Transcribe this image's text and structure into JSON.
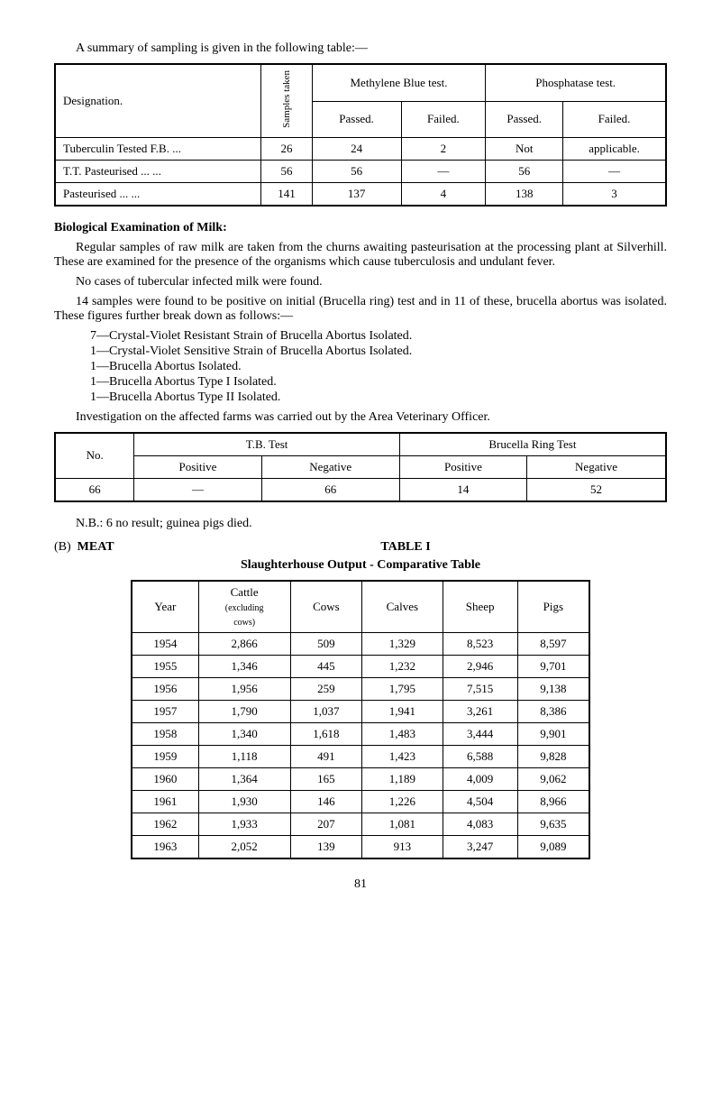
{
  "intro": "A summary of sampling is given in the following table:—",
  "table1": {
    "headers": {
      "designation": "Designation.",
      "samples": "Samples taken",
      "meth": "Methylene Blue test.",
      "phos": "Phosphatase test.",
      "passed": "Passed.",
      "failed": "Failed."
    },
    "rows": [
      {
        "d": "Tuberculin Tested F.B. ...",
        "s": "26",
        "mp": "24",
        "mf": "2",
        "pp": "Not",
        "pf": "applicable."
      },
      {
        "d": "T.T. Pasteurised ...   ...",
        "s": "56",
        "mp": "56",
        "mf": "—",
        "pp": "56",
        "pf": "—"
      },
      {
        "d": "Pasteurised        ...   ...",
        "s": "141",
        "mp": "137",
        "mf": "4",
        "pp": "138",
        "pf": "3"
      }
    ]
  },
  "bio_title": "Biological Examination of Milk:",
  "bio_p1": "Regular samples of raw milk are taken from the churns awaiting pasteurisation at the processing plant at Silverhill. These are examined for the presence of the organisms which cause tuberculosis and undulant fever.",
  "bio_p2": "No cases of tubercular infected milk were found.",
  "bio_p3": "14 samples were found to be positive on initial (Brucella ring) test and in 11 of these, brucella abortus was isolated. These figures further break down as follows:—",
  "list": [
    "7—Crystal-Violet Resistant Strain of Brucella Abortus Isolated.",
    "1—Crystal-Violet Sensitive Strain of Brucella Abortus Isolated.",
    "1—Brucella Abortus Isolated.",
    "1—Brucella Abortus Type I Isolated.",
    "1—Brucella Abortus Type II Isolated."
  ],
  "bio_p4": "Investigation on the affected farms was carried out by the Area Veterinary Officer.",
  "table2": {
    "headers": {
      "no": "No.",
      "tb": "T.B. Test",
      "br": "Brucella Ring Test",
      "pos": "Positive",
      "neg": "Negative"
    },
    "row": {
      "no": "66",
      "tbp": "—",
      "tbn": "66",
      "brp": "14",
      "brn": "52"
    }
  },
  "nb": "N.B.: 6 no result; guinea pigs died.",
  "b_label": "(B)",
  "meat": "MEAT",
  "table_i": "TABLE I",
  "slaughter": "Slaughterhouse Output - Comparative Table",
  "table3": {
    "columns": [
      "Year",
      "Cattle (excluding cows)",
      "Cows",
      "Calves",
      "Sheep",
      "Pigs"
    ],
    "rows": [
      [
        "1954",
        "2,866",
        "509",
        "1,329",
        "8,523",
        "8,597"
      ],
      [
        "1955",
        "1,346",
        "445",
        "1,232",
        "2,946",
        "9,701"
      ],
      [
        "1956",
        "1,956",
        "259",
        "1,795",
        "7,515",
        "9,138"
      ],
      [
        "1957",
        "1,790",
        "1,037",
        "1,941",
        "3,261",
        "8,386"
      ],
      [
        "1958",
        "1,340",
        "1,618",
        "1,483",
        "3,444",
        "9,901"
      ],
      [
        "1959",
        "1,118",
        "491",
        "1,423",
        "6,588",
        "9,828"
      ],
      [
        "1960",
        "1,364",
        "165",
        "1,189",
        "4,009",
        "9,062"
      ],
      [
        "1961",
        "1,930",
        "146",
        "1,226",
        "4,504",
        "8,966"
      ],
      [
        "1962",
        "1,933",
        "207",
        "1,081",
        "4,083",
        "9,635"
      ],
      [
        "1963",
        "2,052",
        "139",
        "913",
        "3,247",
        "9,089"
      ]
    ]
  },
  "page": "81"
}
